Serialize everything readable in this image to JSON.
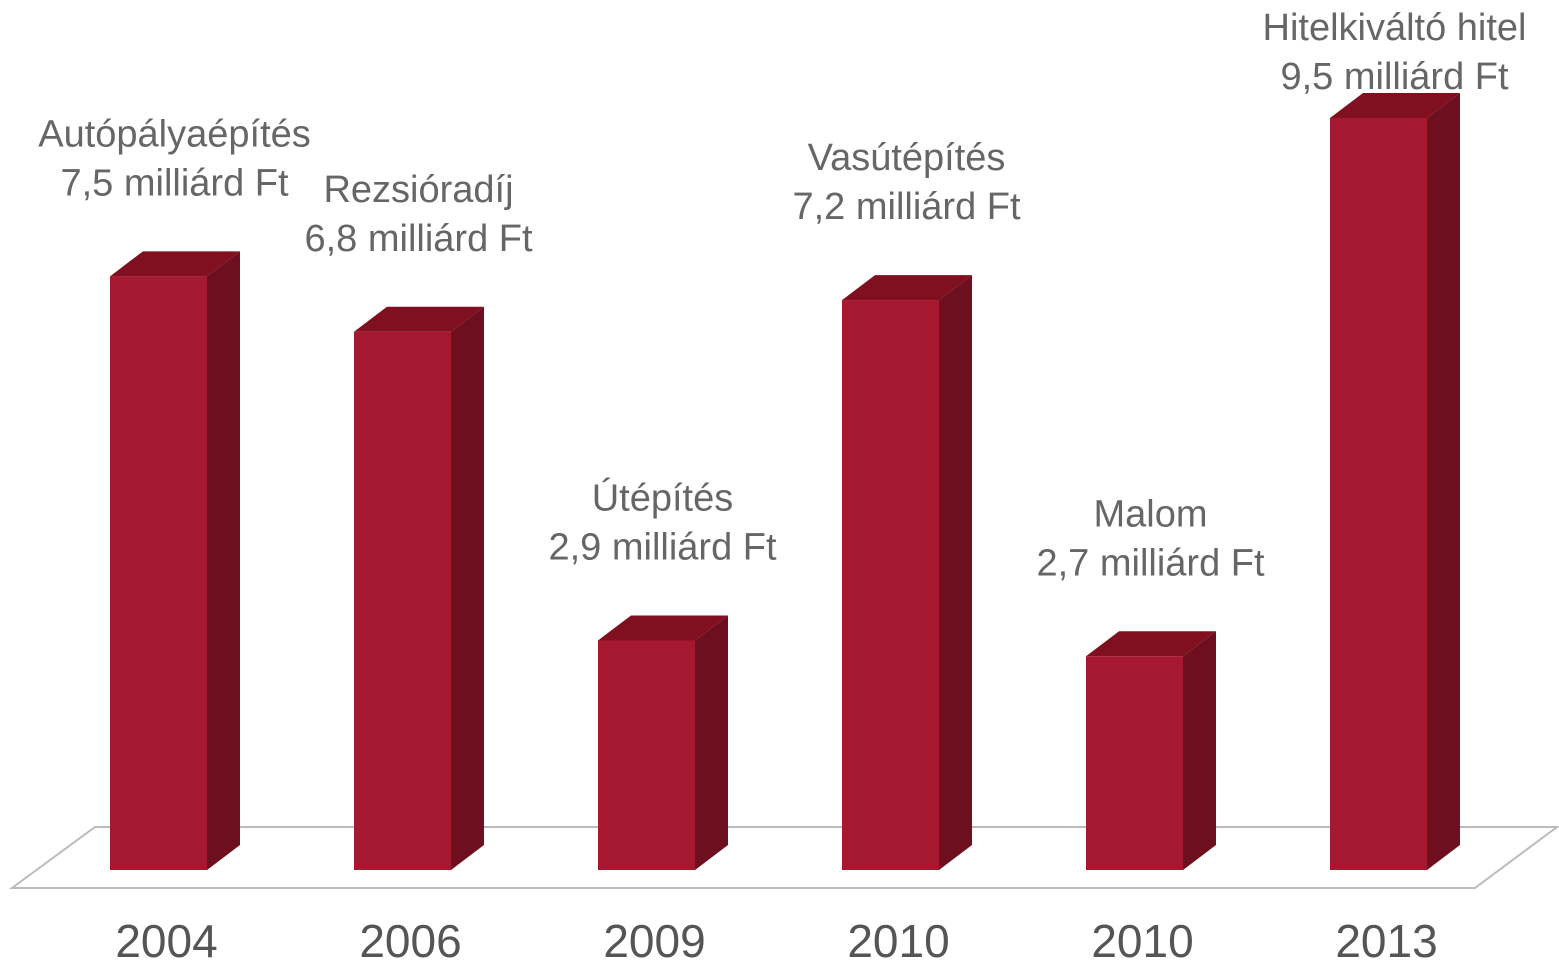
{
  "chart_data": {
    "type": "bar3d",
    "categories": [
      "2004",
      "2006",
      "2009",
      "2010",
      "2010",
      "2013"
    ],
    "projects": [
      "Autópályaépítés",
      "Rezsióradíj",
      "Útépítés",
      "Vasútépítés",
      "Malom",
      "Hitelkiváltó hitel"
    ],
    "values": [
      7.5,
      6.8,
      2.9,
      7.2,
      2.7,
      9.5
    ],
    "value_labels": [
      "7,5 milliárd Ft",
      "6,8 milliárd Ft",
      "2,9 milliárd Ft",
      "7,2 milliárd Ft",
      "2,7 milliárd Ft",
      "9,5 milliárd Ft"
    ],
    "color": "#a6182f",
    "side_color": "#6e0f1f",
    "top_color": "#80101f"
  }
}
